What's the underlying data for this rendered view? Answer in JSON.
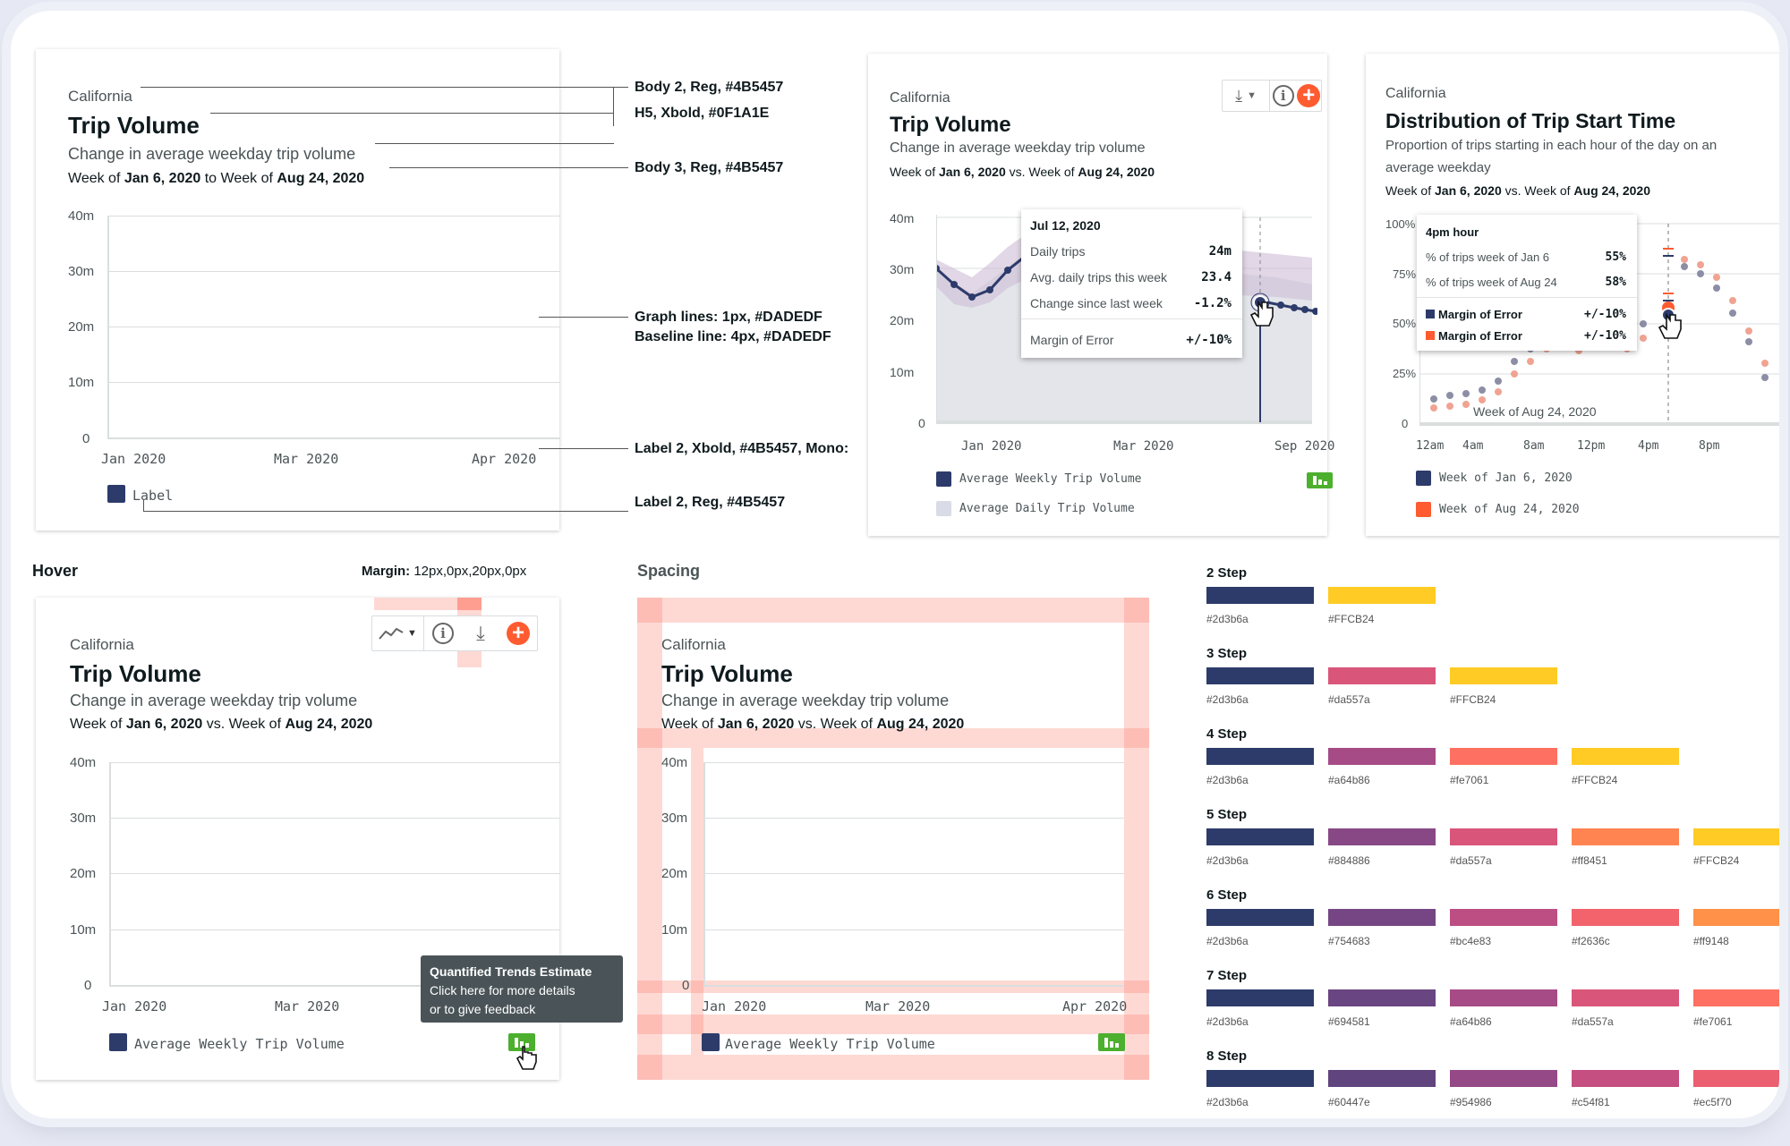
{
  "card1": {
    "location": "California",
    "title": "Trip Volume",
    "subtitle": "Change in average weekday trip volume",
    "week_prefix": "Week of",
    "week_start": "Jan 6, 2020",
    "week_join": "to Week of",
    "week_end": "Aug 24, 2020",
    "y_ticks": [
      "40m",
      "30m",
      "20m",
      "10m",
      "0"
    ],
    "x_ticks": [
      "Jan 2020",
      "Mar 2020",
      "Apr 2020"
    ],
    "legend": "Label"
  },
  "annotations": {
    "a1": "Body 2, Reg, #4B5457",
    "a2": "H5, Xbold, #0F1A1E",
    "a3": "Body 3, Reg, #4B5457",
    "a4_l1": "Graph lines: 1px, #DADEDF",
    "a4_l2": "Baseline line: 4px, #DADEDF",
    "a5": "Label 2, Xbold, #4B5457, Mono:",
    "a6": "Label 2, Reg, #4B5457"
  },
  "card2": {
    "location": "California",
    "title": "Trip Volume",
    "subtitle": "Change in average weekday trip volume",
    "week_prefix": "Week of",
    "week_start": "Jan 6, 2020",
    "week_join": "vs. Week of",
    "week_end": "Aug 24, 2020",
    "y_ticks": [
      "40m",
      "30m",
      "20m",
      "10m",
      "0"
    ],
    "x_ticks": [
      "Jan 2020",
      "Mar 2020",
      "Sep 2020"
    ],
    "legend1": "Average Weekly Trip Volume",
    "legend2": "Average Daily Trip Volume",
    "icons": [
      "download-icon",
      "chevron-down-icon",
      "info-icon",
      "plus-icon",
      "chart-feedback-icon"
    ],
    "tooltip": {
      "date": "Jul 12, 2020",
      "rows": [
        {
          "label": "Daily trips",
          "value": "24m"
        },
        {
          "label": "Avg. daily trips this week",
          "value": "23.4"
        },
        {
          "label": "Change since last week",
          "value": "-1.2%"
        },
        {
          "label": "Margin of Error",
          "value": "+/-10%"
        }
      ]
    }
  },
  "card3": {
    "location": "California",
    "title": "Distribution of Trip Start Time",
    "subtitle_l1": "Proportion of trips starting in each hour of the day on an",
    "subtitle_l2": "average weekday",
    "week_prefix": "Week of",
    "week_start": "Jan 6, 2020",
    "week_join": "vs. Week of",
    "week_end": "Aug 24, 2020",
    "y_ticks": [
      "100%",
      "75%",
      "50%",
      "25%",
      "0"
    ],
    "x_ticks": [
      "12am",
      "4am",
      "8am",
      "12pm",
      "4pm",
      "8pm"
    ],
    "legend1": "Week of Jan 6, 2020",
    "legend2": "Week of Aug 24, 2020",
    "hover_label": "Week of Aug 24, 2020",
    "tooltip": {
      "title": "4pm hour",
      "rows": [
        {
          "label": "% of trips week of Jan 6",
          "value": "55%"
        },
        {
          "label": "% of trips week of Aug 24",
          "value": "58%"
        },
        {
          "label": "Margin of Error",
          "value": "+/-10%"
        },
        {
          "label": "Margin of Error",
          "value": "+/-10%"
        }
      ]
    }
  },
  "hover": {
    "section": "Hover",
    "margin_label": "Margin:",
    "margin_value": "12px,0px,20px,0px",
    "location": "California",
    "title": "Trip Volume",
    "subtitle": "Change in average weekday trip volume",
    "week_prefix": "Week of",
    "week_start": "Jan 6, 2020",
    "week_join": "vs. Week of",
    "week_end": "Aug 24, 2020",
    "y_ticks": [
      "40m",
      "30m",
      "20m",
      "10m",
      "0"
    ],
    "x_ticks": [
      "Jan 2020",
      "Mar 2020"
    ],
    "legend": "Average Weekly Trip Volume",
    "tooltip_title": "Quantified Trends Estimate",
    "tooltip_l1": "Click here for more details",
    "tooltip_l2": "or to give feedback"
  },
  "spacing": {
    "section": "Spacing",
    "location": "California",
    "title": "Trip Volume",
    "subtitle": "Change in average weekday trip volume",
    "week_prefix": "Week of",
    "week_start": "Jan 6, 2020",
    "week_join": "vs. Week of",
    "week_end": "Aug 24, 2020",
    "y_ticks": [
      "40m",
      "30m",
      "20m",
      "10m",
      "0"
    ],
    "x_ticks": [
      "Jan 2020",
      "Mar 2020",
      "Apr 2020"
    ],
    "legend": "Average Weekly Trip Volume"
  },
  "palettes": [
    {
      "label": "2 Step",
      "colors": [
        "#2d3b6a",
        "#FFCB24"
      ]
    },
    {
      "label": "3 Step",
      "colors": [
        "#2d3b6a",
        "#da557a",
        "#FFCB24"
      ]
    },
    {
      "label": "4 Step",
      "colors": [
        "#2d3b6a",
        "#a64b86",
        "#fe7061",
        "#FFCB24"
      ]
    },
    {
      "label": "5 Step",
      "colors": [
        "#2d3b6a",
        "#884886",
        "#da557a",
        "#ff8451",
        "#FFCB24"
      ]
    },
    {
      "label": "6 Step",
      "colors": [
        "#2d3b6a",
        "#754683",
        "#bc4e83",
        "#f2636c",
        "#ff9148"
      ]
    },
    {
      "label": "7 Step",
      "colors": [
        "#2d3b6a",
        "#694581",
        "#a64b86",
        "#da557a",
        "#fe7061"
      ]
    },
    {
      "label": "8 Step",
      "colors": [
        "#2d3b6a",
        "#60447e",
        "#954986",
        "#c54f81",
        "#ec5f70"
      ]
    }
  ]
}
